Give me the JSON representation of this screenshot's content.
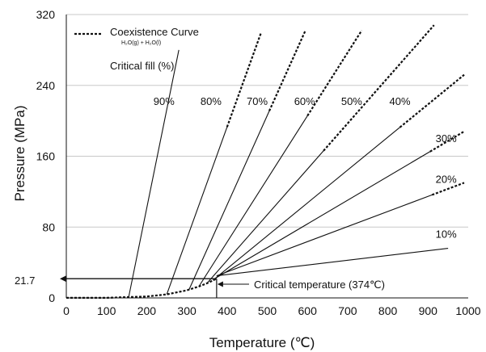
{
  "chart_data": {
    "type": "line",
    "xlabel": "Temperature (℃)",
    "ylabel": "Pressure (MPa)",
    "xlim": [
      0,
      1000
    ],
    "ylim": [
      0,
      320
    ],
    "x_ticks": [
      0,
      100,
      200,
      300,
      400,
      500,
      600,
      700,
      800,
      900,
      1000
    ],
    "y_ticks": [
      0,
      80,
      160,
      240,
      320
    ],
    "reference_line": {
      "label": "21.7",
      "y": 21.7
    },
    "critical_label": "Critical temperature (374℃)",
    "critical_x": 374,
    "legend": {
      "entry": "Coexistence Curve",
      "formula": "H₂O(g) + H₂O(l)",
      "subtitle": "Critical fill (%)"
    },
    "coexistence_curve": {
      "x": [
        0,
        100,
        200,
        250,
        300,
        330,
        350,
        374
      ],
      "y": [
        0.1,
        0.1,
        1.6,
        4.0,
        8.6,
        12.9,
        16.5,
        21.7
      ]
    },
    "series": [
      {
        "name": "90%",
        "label_x": 243,
        "label_y": 218,
        "dashed_from": 310,
        "points": [
          [
            155,
            0.5
          ],
          [
            280,
            280
          ]
        ]
      },
      {
        "name": "80%",
        "label_x": 360,
        "label_y": 218,
        "dashed_from": 400,
        "points": [
          [
            250,
            4
          ],
          [
            485,
            300
          ]
        ]
      },
      {
        "name": "70%",
        "label_x": 475,
        "label_y": 218,
        "dashed_from": 505,
        "points": [
          [
            305,
            9
          ],
          [
            595,
            302
          ]
        ]
      },
      {
        "name": "60%",
        "label_x": 593,
        "label_y": 218,
        "dashed_from": 600,
        "points": [
          [
            330,
            13
          ],
          [
            735,
            302
          ]
        ]
      },
      {
        "name": "50%",
        "label_x": 710,
        "label_y": 218,
        "dashed_from": 640,
        "points": [
          [
            350,
            16.5
          ],
          [
            915,
            308
          ]
        ]
      },
      {
        "name": "40%",
        "label_x": 830,
        "label_y": 218,
        "dashed_from": 830,
        "points": [
          [
            365,
            20
          ],
          [
            990,
            252
          ]
        ]
      },
      {
        "name": "30%",
        "label_x": 945,
        "label_y": 176,
        "dashed_from": 905,
        "points": [
          [
            374,
            23
          ],
          [
            990,
            188
          ]
        ]
      },
      {
        "name": "20%",
        "label_x": 945,
        "label_y": 130,
        "dashed_from": 910,
        "points": [
          [
            374,
            25
          ],
          [
            990,
            130
          ]
        ]
      },
      {
        "name": "10%",
        "label_x": 945,
        "label_y": 68,
        "dashed_from": 2000,
        "points": [
          [
            374,
            25
          ],
          [
            950,
            56
          ]
        ]
      }
    ]
  }
}
